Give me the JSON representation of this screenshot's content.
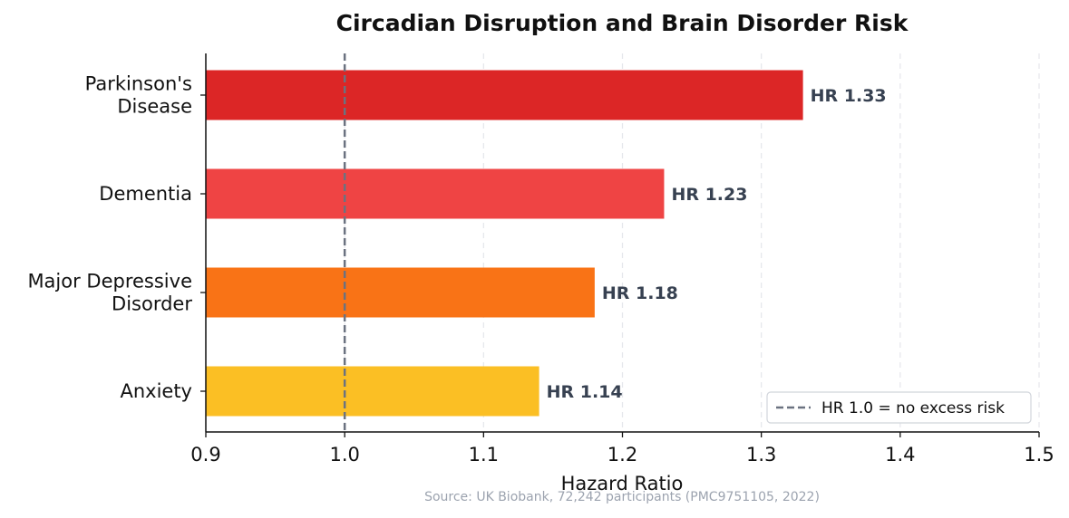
{
  "chart_data": {
    "type": "bar",
    "orientation": "horizontal",
    "title": "Circadian Disruption and Brain Disorder Risk",
    "xlabel": "Hazard Ratio",
    "ylabel": "",
    "xlim": [
      0.9,
      1.5
    ],
    "x_ticks": [
      "0.9",
      "1.0",
      "1.1",
      "1.2",
      "1.3",
      "1.4",
      "1.5"
    ],
    "grid": "vertical dashed",
    "categories": [
      {
        "lines": [
          "Parkinson's",
          "Disease"
        ],
        "value": 1.33,
        "label": "HR 1.33",
        "color": "#dc2626"
      },
      {
        "lines": [
          "Dementia"
        ],
        "value": 1.23,
        "label": "HR 1.23",
        "color": "#ef4444"
      },
      {
        "lines": [
          "Major Depressive",
          "Disorder"
        ],
        "value": 1.18,
        "label": "HR 1.18",
        "color": "#f97316"
      },
      {
        "lines": [
          "Anxiety"
        ],
        "value": 1.14,
        "label": "HR 1.14",
        "color": "#fbbf24"
      }
    ],
    "reference_line": {
      "value": 1.0,
      "label": "HR 1.0 = no excess risk",
      "color": "#6b7280"
    },
    "legend_position": "lower-right",
    "source": "Source: UK Biobank, 72,242 participants (PMC9751105, 2022)"
  }
}
